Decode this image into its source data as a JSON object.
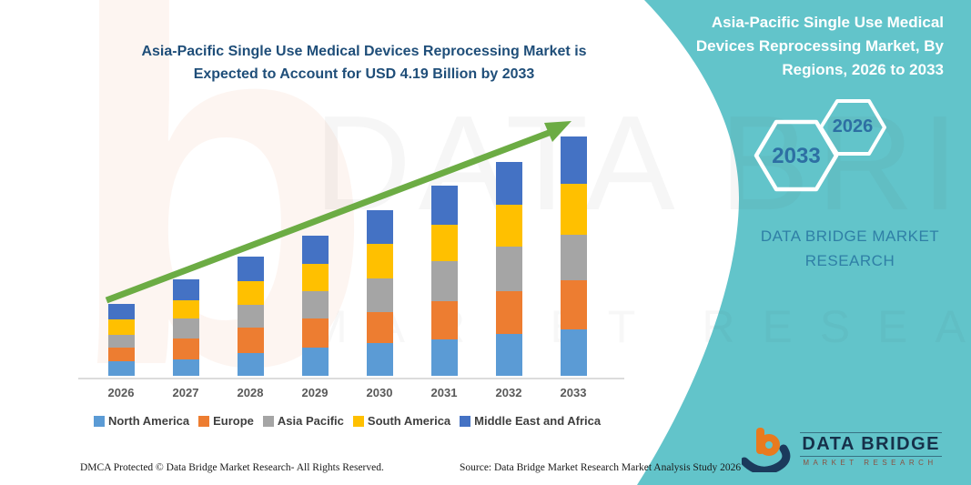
{
  "chart": {
    "title_line1": "Asia-Pacific Single Use Medical Devices Reprocessing Market is",
    "title_line2": "Expected to Account for USD 4.19 Billion by 2033"
  },
  "chart_data": {
    "type": "bar",
    "stacked": true,
    "title": "Asia-Pacific Single Use Medical Devices Reprocessing Market is Expected to Account for USD 4.19 Billion by 2033",
    "unit": "USD Billion",
    "categories": [
      "2026",
      "2027",
      "2028",
      "2029",
      "2030",
      "2031",
      "2032",
      "2033"
    ],
    "series": [
      {
        "name": "North America",
        "color": "#5b9bd5",
        "values": [
          0.25,
          0.29,
          0.4,
          0.5,
          0.57,
          0.64,
          0.73,
          0.81
        ]
      },
      {
        "name": "Europe",
        "color": "#ed7d31",
        "values": [
          0.24,
          0.37,
          0.45,
          0.5,
          0.54,
          0.67,
          0.76,
          0.86
        ]
      },
      {
        "name": "Asia Pacific",
        "color": "#a5a5a5",
        "values": [
          0.22,
          0.34,
          0.4,
          0.48,
          0.59,
          0.69,
          0.78,
          0.8
        ]
      },
      {
        "name": "South America",
        "color": "#ffc000",
        "values": [
          0.27,
          0.32,
          0.4,
          0.48,
          0.61,
          0.64,
          0.72,
          0.89
        ]
      },
      {
        "name": "Middle East and Africa",
        "color": "#4472c4",
        "values": [
          0.28,
          0.37,
          0.43,
          0.5,
          0.59,
          0.69,
          0.75,
          0.83
        ]
      }
    ],
    "totals": [
      1.26,
      1.69,
      2.08,
      2.46,
      2.9,
      3.33,
      3.74,
      4.19
    ],
    "ylim": [
      0,
      4.19
    ],
    "grid": false,
    "legend_position": "bottom",
    "annotations": [
      "upward green trend arrow from 2026 to 2033"
    ]
  },
  "side_panel": {
    "background_color": "#62c4ca",
    "title_line1": "Asia-Pacific Single Use Medical",
    "title_line2": "Devices Reprocessing Market, By",
    "title_line3": "Regions, 2026 to 2033",
    "hexagons": [
      {
        "label": "2033"
      },
      {
        "label": "2026"
      }
    ],
    "brand_line1": "DATA BRIDGE MARKET",
    "brand_line2": "RESEARCH"
  },
  "logo": {
    "name": "DATA BRIDGE",
    "subtitle": "MARKET RESEARCH"
  },
  "footer": {
    "left": "DMCA Protected © Data Bridge Market Research-  All Rights Reserved.",
    "source": "Source: Data Bridge Market Research  Market Analysis Study 2026"
  },
  "watermark": {
    "letter": "b",
    "big_text": "DATA BRIDGE",
    "sub_text": "MARKET RESEARCH"
  },
  "colors": {
    "accent_teal": "#62c4ca",
    "title_blue": "#1f4e79",
    "arrow_green": "#6cac44",
    "hexagon_text": "#2d6fa3",
    "brand_text": "#2f7fa6"
  }
}
